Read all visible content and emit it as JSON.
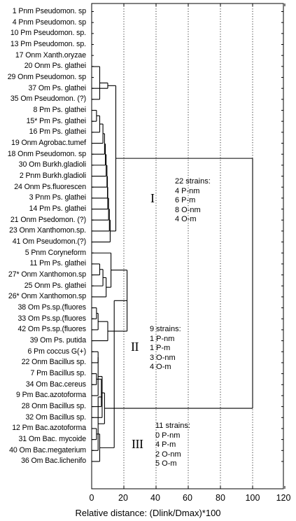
{
  "leaves": [
    "1  Pnm Pseudomon. sp",
    "4  Pnm Pseudomon. sp",
    "10 Pm Pseudomon. sp.",
    "13  Pm Pseudomon. sp.",
    "17 Onm Xanth.oryzae",
    "20  Onm Ps. glathei",
    "29 Onm Pseudomon. sp",
    "37 Om Ps. glathei",
    "35 Om Pseudomon. (?)",
    "8 Pm Ps. glathei",
    "15* Pm Ps. glathei",
    "16 Pm Ps. glathei",
    "19 Onm Agrobac.tumef",
    "18 Onm Pseudomon. sp",
    "30 Om Burkh.gladioli",
    "2 Pnm Burkh.gladioli",
    "24 Onm Ps.fluorescen",
    "3 Pnm Ps. glathei",
    "14 Pm Ps. glathei",
    "21 Onm Psedomon. (?)",
    "23 Onm Xanthomon.sp.",
    "41 Om Pseudomon.(?)",
    "5 Pnm Coryneform",
    "11 Pm Ps. glathei",
    "27* Onm Xanthomon.sp",
    "25 Onm Ps. glathei",
    "26* Onm Xanthomon.sp",
    "38 Om Ps.sp.(fluores",
    "33 Om Ps.sp.(fluores",
    "42 Om Ps.sp.(fluores",
    "39 Om Ps. putida",
    "6 Pm coccus G(+)",
    "22 Onm Bacillus sp.",
    "7 Pm Bacillus sp.",
    "34 Om Bac.cereus",
    "9 Pm Bac.azotoforma",
    "28 Onm Bacillus sp.",
    "32 Om  Bacillus sp.",
    "12 Pm Bac.azotoforma",
    "31  Om  Bac. mycoide",
    "40 Om Bac.megaterium",
    "36 Om Bac.lichenifo"
  ],
  "axis": {
    "ticks": [
      "0",
      "20",
      "40",
      "60",
      "80",
      "100",
      "120"
    ],
    "xlabel": "Relative distance: (Dlink/Dmax)*100"
  },
  "clusters": [
    {
      "numeral": "I",
      "lines": [
        "22 strains:",
        "4 P-nm",
        "6 P-m",
        "8 O-nm",
        "4 O-m"
      ]
    },
    {
      "numeral": "II",
      "lines": [
        "9 strains:",
        "1 P-nm",
        "1 P-m",
        "3 O-nm",
        "4 O-m"
      ]
    },
    {
      "numeral": "III",
      "lines": [
        "11 strains:",
        "0 P-nm",
        "4 P-m",
        "2 O-nm",
        "5 O-m"
      ]
    }
  ],
  "chart_data": {
    "type": "dendrogram",
    "xlabel": "Relative distance: (Dlink/Dmax)*100",
    "xlim": [
      0,
      120
    ],
    "x_ticks": [
      0,
      20,
      40,
      60,
      80,
      100,
      120
    ],
    "merges": [
      {
        "a": 0,
        "b": 1,
        "h": 0
      },
      {
        "a": 42,
        "b": 2,
        "h": 0
      },
      {
        "a": 43,
        "b": 3,
        "h": 0
      },
      {
        "a": 44,
        "b": 4,
        "h": 0
      },
      {
        "a": 45,
        "b": 5,
        "h": 0
      },
      {
        "a": 46,
        "b": 6,
        "h": 0
      },
      {
        "a": 47,
        "b": 8,
        "h": 5
      },
      {
        "a": 48,
        "b": 7,
        "h": 10
      },
      {
        "a": 9,
        "b": 10,
        "h": 3
      },
      {
        "a": 50,
        "b": 11,
        "h": 5
      },
      {
        "a": 51,
        "b": 12,
        "h": 7
      },
      {
        "a": 52,
        "b": 13,
        "h": 8
      },
      {
        "a": 53,
        "b": 14,
        "h": 8.5
      },
      {
        "a": 54,
        "b": 15,
        "h": 9
      },
      {
        "a": 55,
        "b": 16,
        "h": 9.5
      },
      {
        "a": 56,
        "b": 17,
        "h": 9.8
      },
      {
        "a": 57,
        "b": 18,
        "h": 10
      },
      {
        "a": 58,
        "b": 19,
        "h": 10.5
      },
      {
        "a": 59,
        "b": 20,
        "h": 11
      },
      {
        "a": 60,
        "b": 21,
        "h": 11.5
      },
      {
        "a": 49,
        "b": 61,
        "h": 15
      },
      {
        "a": 23,
        "b": 24,
        "h": 5
      },
      {
        "a": 63,
        "b": 25,
        "h": 7
      },
      {
        "a": 64,
        "b": 26,
        "h": 9
      },
      {
        "a": 22,
        "b": 65,
        "h": 12
      },
      {
        "a": 27,
        "b": 28,
        "h": 3
      },
      {
        "a": 67,
        "b": 29,
        "h": 4
      },
      {
        "a": 68,
        "b": 30,
        "h": 10
      },
      {
        "a": 66,
        "b": 69,
        "h": 22
      },
      {
        "a": 31,
        "b": 32,
        "h": 4
      },
      {
        "a": 33,
        "b": 34,
        "h": 3
      },
      {
        "a": 71,
        "b": 35,
        "h": 4
      },
      {
        "a": 72,
        "b": 36,
        "h": 6
      },
      {
        "a": 73,
        "b": 37,
        "h": 6.5
      },
      {
        "a": 38,
        "b": 39,
        "h": 3
      },
      {
        "a": 75,
        "b": 40,
        "h": 4
      },
      {
        "a": 76,
        "b": 41,
        "h": 5
      },
      {
        "a": 74,
        "b": 77,
        "h": 8
      },
      {
        "a": 70,
        "b": 78,
        "h": 14
      },
      {
        "a": 62,
        "b": 79,
        "h": 100
      }
    ]
  },
  "colors": {
    "ink": "#000000",
    "background": "#ffffff"
  }
}
